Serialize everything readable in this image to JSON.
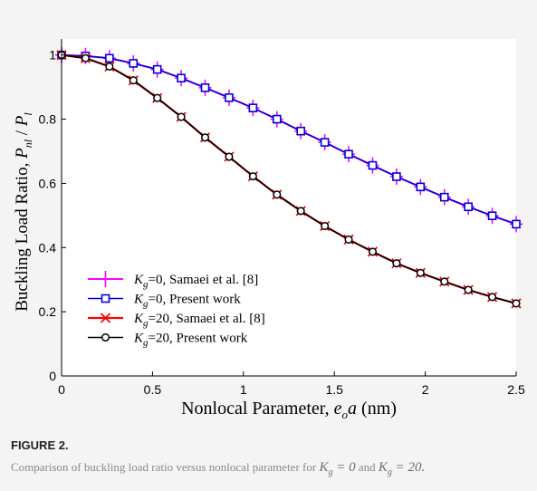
{
  "figure": {
    "label": "FIGURE 2.",
    "caption_parts": {
      "before": "Comparison of buckling load ratio versus nonlocal parameter for ",
      "m1_base": "K",
      "m1_sub": "g",
      "m1_rest": " = 0",
      "mid": " and ",
      "m2_base": "K",
      "m2_sub": "g",
      "m2_rest": " = 20."
    }
  },
  "colors": {
    "plot_bg": "#ffffff",
    "magenta": "#ff00ff",
    "blue": "#0000dd",
    "red": "#ff0000",
    "black": "#000000"
  },
  "chart_data": {
    "type": "line",
    "title": "",
    "xlabel": {
      "text": "Nonlocal Parameter, ",
      "math_base": "e",
      "math_sub": "o",
      "math_after": "a",
      "unit": " (nm)"
    },
    "ylabel": {
      "text": "Buckling Load Ratio, ",
      "num_base": "P",
      "num_sub": "nl",
      "den_base": "P",
      "den_sub": "l"
    },
    "xlim": [
      0,
      2.5
    ],
    "ylim": [
      0,
      1.05
    ],
    "xticks": [
      0,
      0.5,
      1,
      1.5,
      2,
      2.5
    ],
    "xtick_labels": [
      "0",
      "0.5",
      "1",
      "1.5",
      "2",
      "2.5"
    ],
    "yticks": [
      0,
      0.2,
      0.4,
      0.6,
      0.8,
      1
    ],
    "ytick_labels": [
      "0",
      "0.2",
      "0.4",
      "0.6",
      "0.8",
      "1"
    ],
    "grid": false,
    "legend_position": "lower-left",
    "x": [
      0,
      0.1316,
      0.2632,
      0.3947,
      0.5263,
      0.6579,
      0.7895,
      0.9211,
      1.0526,
      1.1842,
      1.3158,
      1.4474,
      1.5789,
      1.7105,
      1.8421,
      1.9737,
      2.1053,
      2.2368,
      2.3684,
      2.5
    ],
    "series": [
      {
        "name_base": "K",
        "name_sub": "g",
        "name_rest": "=0, Samaei et al. [8]",
        "color": "#ff00ff",
        "marker": "plus",
        "values": [
          1.0,
          0.997,
          0.99,
          0.974,
          0.955,
          0.928,
          0.898,
          0.867,
          0.835,
          0.8,
          0.763,
          0.728,
          0.691,
          0.656,
          0.621,
          0.589,
          0.557,
          0.527,
          0.499,
          0.473
        ]
      },
      {
        "name_base": "K",
        "name_sub": "g",
        "name_rest": "=0, Present work",
        "color": "#0000dd",
        "marker": "square",
        "values": [
          1.0,
          0.997,
          0.99,
          0.974,
          0.955,
          0.928,
          0.898,
          0.867,
          0.835,
          0.8,
          0.763,
          0.728,
          0.691,
          0.656,
          0.621,
          0.589,
          0.557,
          0.527,
          0.499,
          0.473
        ]
      },
      {
        "name_base": "K",
        "name_sub": "g",
        "name_rest": "=20, Samaei et al. [8]",
        "color": "#ff0000",
        "marker": "x",
        "values": [
          1.0,
          0.99,
          0.964,
          0.921,
          0.866,
          0.807,
          0.743,
          0.683,
          0.622,
          0.565,
          0.514,
          0.467,
          0.425,
          0.387,
          0.351,
          0.321,
          0.294,
          0.268,
          0.246,
          0.226
        ]
      },
      {
        "name_base": "K",
        "name_sub": "g",
        "name_rest": "=20, Present work",
        "color": "#000000",
        "marker": "circle",
        "values": [
          1.0,
          0.99,
          0.964,
          0.921,
          0.866,
          0.807,
          0.743,
          0.683,
          0.622,
          0.565,
          0.514,
          0.467,
          0.425,
          0.387,
          0.351,
          0.321,
          0.294,
          0.268,
          0.246,
          0.226
        ]
      }
    ]
  }
}
